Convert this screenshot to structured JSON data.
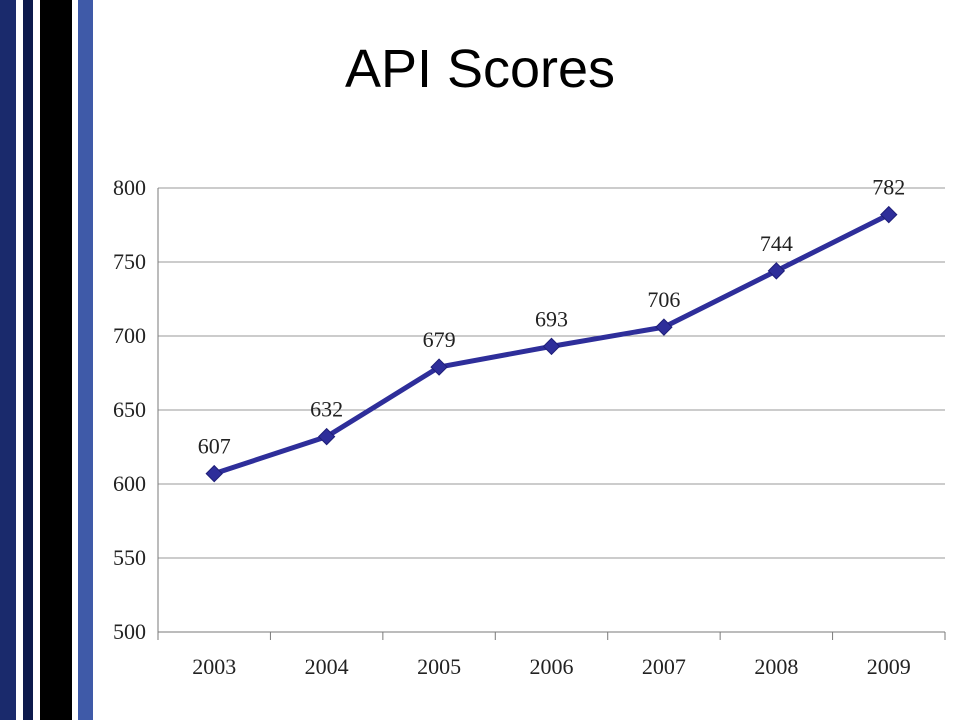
{
  "slide": {
    "title": "API Scores",
    "stripe_colors": [
      "#1a2a6c",
      "#0d1a4d",
      "#000000",
      "#3f5aa8"
    ]
  },
  "chart_data": {
    "type": "line",
    "title": "",
    "xlabel": "",
    "ylabel": "",
    "categories": [
      "2003",
      "2004",
      "2005",
      "2006",
      "2007",
      "2008",
      "2009"
    ],
    "series": [
      {
        "values": [
          607,
          632,
          679,
          693,
          706,
          744,
          782
        ],
        "color": "#2e2e9a"
      }
    ],
    "ylim": [
      500,
      800
    ],
    "yticks": [
      "500",
      "550",
      "600",
      "650",
      "700",
      "750",
      "800"
    ],
    "grid": true,
    "data_labels": true,
    "marker": "diamond",
    "legend": "none"
  }
}
